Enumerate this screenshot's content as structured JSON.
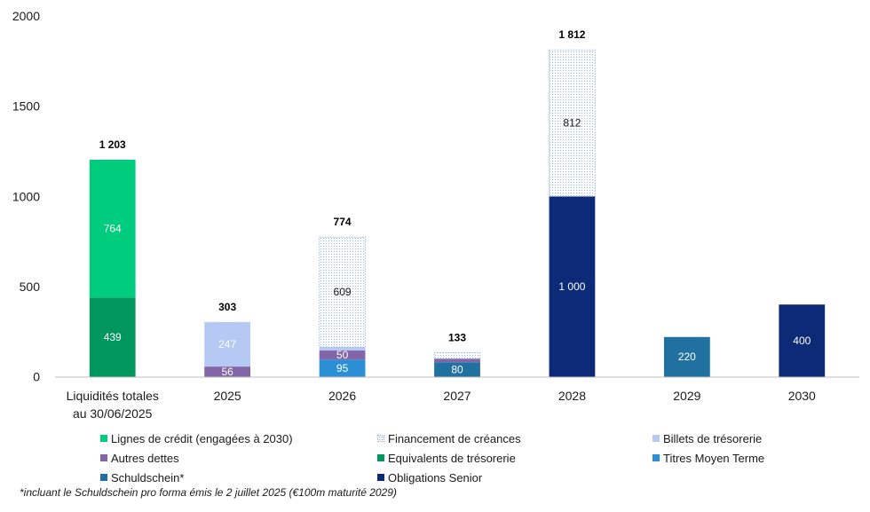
{
  "chart_data": {
    "type": "bar",
    "stacked": true,
    "categories": [
      [
        "Liquidités totales",
        "au 30/06/2025"
      ],
      [
        "2025"
      ],
      [
        "2026"
      ],
      [
        "2027"
      ],
      [
        "2028"
      ],
      [
        "2029"
      ],
      [
        "2030"
      ]
    ],
    "ylim": [
      0,
      2000
    ],
    "yticks": [
      0,
      500,
      1000,
      1500,
      2000
    ],
    "grid": false,
    "series": [
      {
        "name": "Equivalents de trésorerie",
        "color": "#00975E",
        "values": [
          439,
          0,
          0,
          0,
          0,
          0,
          0
        ],
        "labels": [
          "439",
          null,
          null,
          null,
          null,
          null,
          null
        ],
        "label_color": "#FFFFFF"
      },
      {
        "name": "Lignes de crédit (engagées à 2030)",
        "color": "#00CC7E",
        "values": [
          764,
          0,
          0,
          0,
          0,
          0,
          0
        ],
        "labels": [
          "764",
          null,
          null,
          null,
          null,
          null,
          null
        ],
        "label_color": "#FFFFFF"
      },
      {
        "name": "Titres Moyen Terme",
        "color": "#2B8FD4",
        "values": [
          0,
          0,
          95,
          0,
          0,
          0,
          0
        ],
        "labels": [
          null,
          null,
          "95",
          null,
          null,
          null,
          null
        ],
        "label_color": "#FFFFFF"
      },
      {
        "name": "Schuldschein*",
        "color": "#2070A0",
        "values": [
          0,
          0,
          0,
          80,
          0,
          220,
          0
        ],
        "labels": [
          null,
          null,
          null,
          "80",
          null,
          "220",
          null
        ],
        "label_color": "#FFFFFF"
      },
      {
        "name": "Obligations Senior",
        "color": "#0C2A78",
        "values": [
          0,
          0,
          0,
          0,
          1000,
          0,
          400
        ],
        "labels": [
          null,
          null,
          null,
          null,
          "1 000",
          null,
          "400"
        ],
        "label_color": "#FFFFFF"
      },
      {
        "name": "Autres dettes",
        "color": "#8165A6",
        "values": [
          0,
          56,
          50,
          20,
          0,
          0,
          0
        ],
        "labels": [
          null,
          "56",
          "50",
          null,
          null,
          null,
          null
        ],
        "label_color": "#FFFFFF"
      },
      {
        "name": "Billets de trésorerie",
        "color": "#B6C8F4",
        "values": [
          0,
          247,
          20,
          0,
          0,
          0,
          0
        ],
        "labels": [
          null,
          "247",
          null,
          null,
          null,
          null,
          null
        ],
        "label_color": "#FFFFFF"
      },
      {
        "name": "Financement de créances",
        "color": "#9DB9DB",
        "pattern": "dotted",
        "values": [
          0,
          0,
          609,
          33,
          812,
          0,
          0
        ],
        "labels": [
          null,
          null,
          "609",
          null,
          "812",
          null,
          null
        ],
        "label_color": "#1A1A1A"
      }
    ],
    "totals": [
      "1 203",
      "303",
      "774",
      "133",
      "1 812",
      null,
      null
    ],
    "legend": {
      "position": "bottom",
      "columns": 3,
      "entries": [
        "Lignes de crédit (engagées à 2030)",
        "Financement de créances",
        "Billets de trésorerie",
        "Autres dettes",
        "Equivalents de trésorerie",
        "Titres Moyen Terme",
        "Schuldschein*",
        "Obligations Senior"
      ]
    }
  },
  "footnote": "*incluant le Schuldschein pro forma émis le 2 juillet 2025 (€100m maturité 2029)"
}
